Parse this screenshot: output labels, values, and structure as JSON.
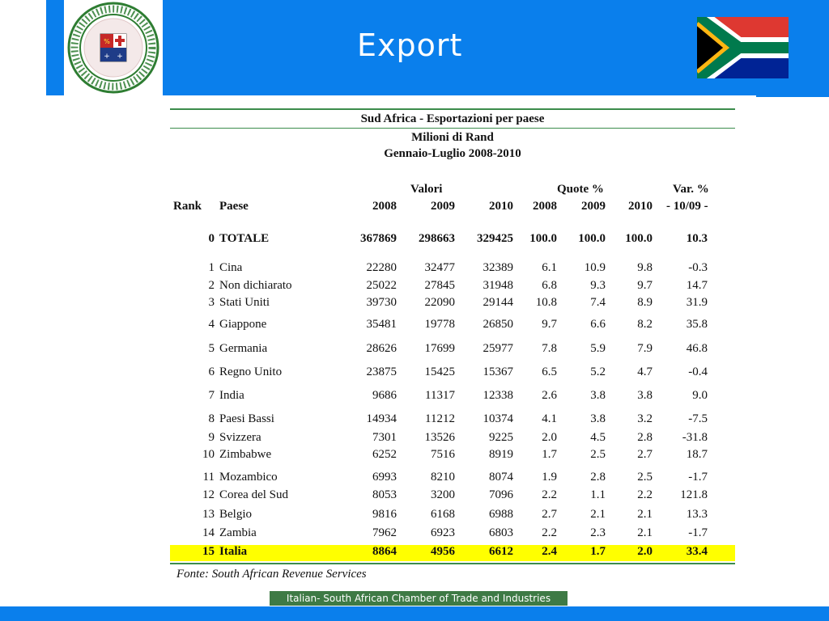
{
  "slide": {
    "title": "Export"
  },
  "logo": {
    "ring_text": "ITALIAN-SOUTH AFRICAN CHAMBER OF TRADE AND INDUSTRIES",
    "colors": {
      "ring": "#2e7d32",
      "shield_red": "#c62828",
      "shield_blue": "#1f3c88"
    }
  },
  "flag": {
    "name": "south-africa-flag"
  },
  "table": {
    "title": "Sud Africa - Esportazioni per paese",
    "unit": "Milioni di Rand",
    "period": "Gennaio-Luglio 2008-2010",
    "group_headers": {
      "valori": "Valori",
      "quote": "Quote %",
      "var": "Var. %"
    },
    "columns": {
      "rank": "Rank",
      "paese": "Paese",
      "v2008": "2008",
      "v2009": "2009",
      "v2010": "2010",
      "q2008": "2008",
      "q2009": "2009",
      "q2010": "2010",
      "var": "-  10/09  -"
    },
    "total": {
      "rank": "0",
      "paese": "TOTALE",
      "v2008": "367869",
      "v2009": "298663",
      "v2010": "329425",
      "q2008": "100.0",
      "q2009": "100.0",
      "q2010": "100.0",
      "var": "10.3"
    },
    "rows": [
      {
        "rank": "1",
        "paese": "Cina",
        "v2008": "22280",
        "v2009": "32477",
        "v2010": "32389",
        "q2008": "6.1",
        "q2009": "10.9",
        "q2010": "9.8",
        "var": "-0.3"
      },
      {
        "rank": "2",
        "paese": "Non dichiarato",
        "v2008": "25022",
        "v2009": "27845",
        "v2010": "31948",
        "q2008": "6.8",
        "q2009": "9.3",
        "q2010": "9.7",
        "var": "14.7"
      },
      {
        "rank": "3",
        "paese": "Stati Uniti",
        "v2008": "39730",
        "v2009": "22090",
        "v2010": "29144",
        "q2008": "10.8",
        "q2009": "7.4",
        "q2010": "8.9",
        "var": "31.9"
      },
      {
        "rank": "4",
        "paese": "Giappone",
        "v2008": "35481",
        "v2009": "19778",
        "v2010": "26850",
        "q2008": "9.7",
        "q2009": "6.6",
        "q2010": "8.2",
        "var": "35.8"
      },
      {
        "rank": "5",
        "paese": "Germania",
        "v2008": "28626",
        "v2009": "17699",
        "v2010": "25977",
        "q2008": "7.8",
        "q2009": "5.9",
        "q2010": "7.9",
        "var": "46.8"
      },
      {
        "rank": "6",
        "paese": "Regno Unito",
        "v2008": "23875",
        "v2009": "15425",
        "v2010": "15367",
        "q2008": "6.5",
        "q2009": "5.2",
        "q2010": "4.7",
        "var": "-0.4"
      },
      {
        "rank": "7",
        "paese": "India",
        "v2008": "9686",
        "v2009": "11317",
        "v2010": "12338",
        "q2008": "2.6",
        "q2009": "3.8",
        "q2010": "3.8",
        "var": "9.0"
      },
      {
        "rank": "8",
        "paese": "Paesi Bassi",
        "v2008": "14934",
        "v2009": "11212",
        "v2010": "10374",
        "q2008": "4.1",
        "q2009": "3.8",
        "q2010": "3.2",
        "var": "-7.5"
      },
      {
        "rank": "9",
        "paese": "Svizzera",
        "v2008": "7301",
        "v2009": "13526",
        "v2010": "9225",
        "q2008": "2.0",
        "q2009": "4.5",
        "q2010": "2.8",
        "var": "-31.8"
      },
      {
        "rank": "10",
        "paese": "Zimbabwe",
        "v2008": "6252",
        "v2009": "7516",
        "v2010": "8919",
        "q2008": "1.7",
        "q2009": "2.5",
        "q2010": "2.7",
        "var": "18.7"
      },
      {
        "rank": "11",
        "paese": "Mozambico",
        "v2008": "6993",
        "v2009": "8210",
        "v2010": "8074",
        "q2008": "1.9",
        "q2009": "2.8",
        "q2010": "2.5",
        "var": "-1.7"
      },
      {
        "rank": "12",
        "paese": "Corea del Sud",
        "v2008": "8053",
        "v2009": "3200",
        "v2010": "7096",
        "q2008": "2.2",
        "q2009": "1.1",
        "q2010": "2.2",
        "var": "121.8"
      },
      {
        "rank": "13",
        "paese": "Belgio",
        "v2008": "9816",
        "v2009": "6168",
        "v2010": "6988",
        "q2008": "2.7",
        "q2009": "2.1",
        "q2010": "2.1",
        "var": "13.3"
      },
      {
        "rank": "14",
        "paese": "Zambia",
        "v2008": "7962",
        "v2009": "6923",
        "v2010": "6803",
        "q2008": "2.2",
        "q2009": "2.3",
        "q2010": "2.1",
        "var": "-1.7"
      }
    ],
    "highlight": {
      "rank": "15",
      "paese": "Italia",
      "v2008": "8864",
      "v2009": "4956",
      "v2010": "6612",
      "q2008": "2.4",
      "q2009": "1.7",
      "q2010": "2.0",
      "var": "33.4"
    },
    "source": "Fonte: South African Revenue Services",
    "colors": {
      "rules": "#3c8c4c",
      "highlight": "#ffff00"
    }
  },
  "footer": {
    "label": "Italian- South African Chamber of Trade and Industries"
  },
  "colors": {
    "band": "#0a7fec",
    "footer_bg": "#3e7a45"
  }
}
